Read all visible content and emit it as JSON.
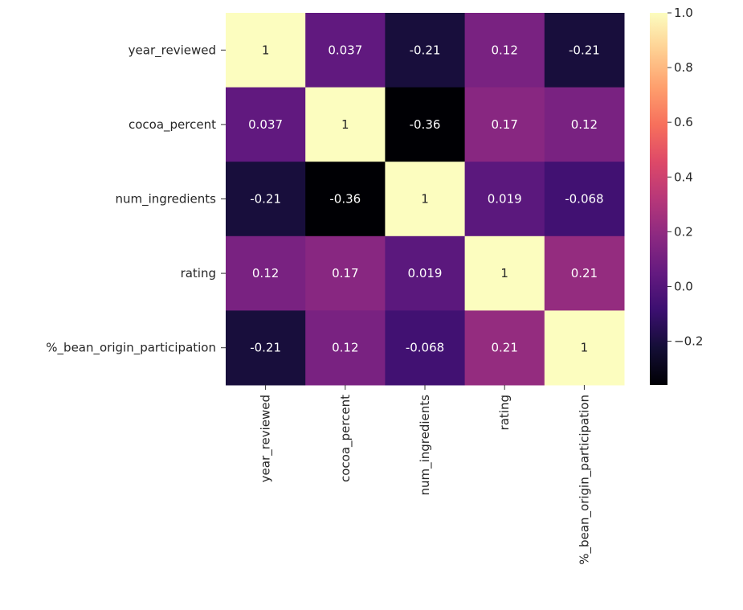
{
  "chart_data": {
    "type": "heatmap",
    "title": "",
    "xlabel": "",
    "ylabel": "",
    "row_labels": [
      "year_reviewed",
      "cocoa_percent",
      "num_ingredients",
      "rating",
      "%_bean_origin_participation"
    ],
    "col_labels": [
      "year_reviewed",
      "cocoa_percent",
      "num_ingredients",
      "rating",
      "%_bean_origin_participation"
    ],
    "values": [
      [
        1,
        0.037,
        -0.21,
        0.12,
        -0.21
      ],
      [
        0.037,
        1,
        -0.36,
        0.17,
        0.12
      ],
      [
        -0.21,
        -0.36,
        1,
        0.019,
        -0.068
      ],
      [
        0.12,
        0.17,
        0.019,
        1,
        0.21
      ],
      [
        -0.21,
        0.12,
        -0.068,
        0.21,
        1
      ]
    ],
    "annotations": [
      [
        "1",
        "0.037",
        "-0.21",
        "0.12",
        "-0.21"
      ],
      [
        "0.037",
        "1",
        "-0.36",
        "0.17",
        "0.12"
      ],
      [
        "-0.21",
        "-0.36",
        "1",
        "0.019",
        "-0.068"
      ],
      [
        "0.12",
        "0.17",
        "0.019",
        "1",
        "0.21"
      ],
      [
        "-0.21",
        "0.12",
        "-0.068",
        "0.21",
        "1"
      ]
    ],
    "colormap": "magma",
    "vmin": -0.36,
    "vmax": 1.0,
    "colorbar": {
      "ticks": [
        -0.2,
        0.0,
        0.2,
        0.4,
        0.6,
        0.8,
        1.0
      ],
      "tick_labels": [
        "−0.2",
        "0.0",
        "0.2",
        "0.4",
        "0.6",
        "0.8",
        "1.0"
      ]
    },
    "annotation_colors": {
      "light_text": "#ffffff",
      "dark_text": "#262626"
    }
  }
}
